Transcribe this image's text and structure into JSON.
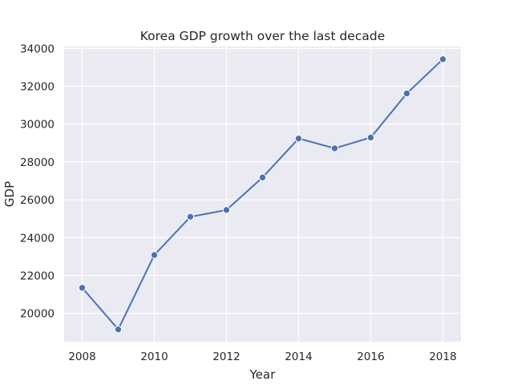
{
  "chart_data": {
    "type": "line",
    "title": "Korea GDP growth over the last decade",
    "xlabel": "Year",
    "ylabel": "GDP",
    "x": [
      2008,
      2009,
      2010,
      2011,
      2012,
      2013,
      2014,
      2015,
      2016,
      2017,
      2018
    ],
    "series": [
      {
        "name": "",
        "values": [
          21350,
          19150,
          23080,
          25100,
          25460,
          27180,
          29240,
          28720,
          29290,
          31620,
          33430
        ]
      }
    ],
    "xlim": [
      2007.5,
      2018.5
    ],
    "ylim": [
      18500,
      34100
    ],
    "xticks": [
      "2008",
      "2010",
      "2012",
      "2014",
      "2016",
      "2018"
    ],
    "yticks": [
      "20000",
      "22000",
      "24000",
      "26000",
      "28000",
      "30000",
      "32000",
      "34000"
    ],
    "grid": true,
    "legend": "none",
    "colors": {
      "line": "#4c72b0",
      "background": "#eaeaf2",
      "grid": "#ffffff"
    }
  }
}
